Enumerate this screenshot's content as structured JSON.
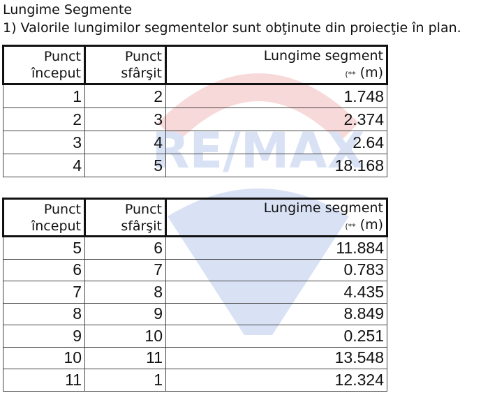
{
  "title": "Lungime Segmente",
  "subtitle": "1) Valorile lungimilor segmentelor sunt obţinute din proiecţie în plan.",
  "watermark": "RE/MAX",
  "headers": {
    "start": [
      "Punct",
      "început"
    ],
    "end": [
      "Punct",
      "sfârşit"
    ],
    "length": "Lungime segment",
    "unit_note": "(**",
    "unit": "(m)"
  },
  "table1": [
    [
      "1",
      "2",
      "1.748"
    ],
    [
      "2",
      "3",
      "2.374"
    ],
    [
      "3",
      "4",
      "2.64"
    ],
    [
      "4",
      "5",
      "18.168"
    ]
  ],
  "table2": [
    [
      "5",
      "6",
      "11.884"
    ],
    [
      "6",
      "7",
      "0.783"
    ],
    [
      "7",
      "8",
      "4.435"
    ],
    [
      "8",
      "9",
      "8.849"
    ],
    [
      "9",
      "10",
      "0.251"
    ],
    [
      "10",
      "11",
      "13.548"
    ],
    [
      "11",
      "1",
      "12.324"
    ]
  ]
}
